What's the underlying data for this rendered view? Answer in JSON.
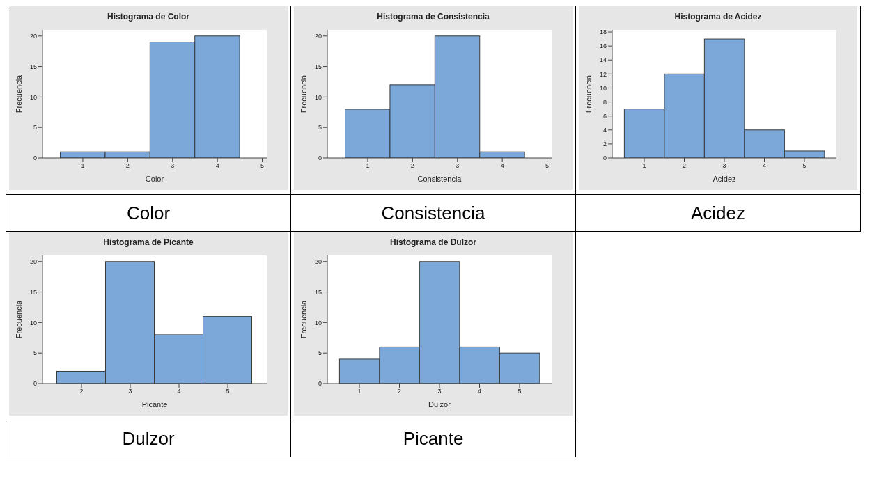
{
  "chart_data": [
    {
      "type": "histogram",
      "title": "Histograma de Color",
      "xlabel": "Color",
      "ylabel": "Frecuencia",
      "bins": [
        0.5,
        1.5,
        2.5,
        3.5,
        4.5
      ],
      "values": [
        1,
        1,
        19,
        20
      ],
      "color": "#7ba7d9",
      "xlim": [
        0.1,
        5.1
      ],
      "xticks": [
        1,
        2,
        3,
        4,
        5
      ],
      "ylim": [
        0,
        21
      ],
      "yticks": [
        0,
        5,
        10,
        15,
        20
      ],
      "annotations": [
        "Color"
      ]
    },
    {
      "type": "histogram",
      "title": "Histograma de Consistencia",
      "xlabel": "Consistencia",
      "ylabel": "Frecuencia",
      "bins": [
        0.5,
        1.5,
        2.5,
        3.5,
        4.5
      ],
      "values": [
        8,
        12,
        20,
        1
      ],
      "color": "#7ba7d9",
      "xlim": [
        0.1,
        5.1
      ],
      "xticks": [
        1,
        2,
        3,
        4,
        5
      ],
      "ylim": [
        0,
        21
      ],
      "yticks": [
        0,
        5,
        10,
        15,
        20
      ],
      "annotations": [
        "Consistencia"
      ]
    },
    {
      "type": "histogram",
      "title": "Histograma de Acidez",
      "xlabel": "Acidez",
      "ylabel": "Frecuencia",
      "bins": [
        0.5,
        1.5,
        2.5,
        3.5,
        4.5,
        5.5
      ],
      "values": [
        7,
        12,
        17,
        4,
        1
      ],
      "color": "#7ba7d9",
      "xlim": [
        0.2,
        5.8
      ],
      "xticks": [
        1,
        2,
        3,
        4,
        5
      ],
      "ylim": [
        0,
        18.3
      ],
      "yticks": [
        0,
        2,
        4,
        6,
        8,
        10,
        12,
        14,
        16,
        18
      ],
      "annotations": [
        "Acidez"
      ]
    },
    {
      "type": "histogram",
      "title": "Histograma de Picante",
      "xlabel": "Picante",
      "ylabel": "Frecuencia",
      "bins": [
        1.5,
        2.5,
        3.5,
        4.5,
        5.5
      ],
      "values": [
        2,
        20,
        8,
        11
      ],
      "color": "#7ba7d9",
      "xlim": [
        1.2,
        5.8
      ],
      "xticks": [
        2,
        3,
        4,
        5
      ],
      "ylim": [
        0,
        21
      ],
      "yticks": [
        0,
        5,
        10,
        15,
        20
      ],
      "annotations": [
        "Dulzor"
      ]
    },
    {
      "type": "histogram",
      "title": "Histograma de Dulzor",
      "xlabel": "Dulzor",
      "ylabel": "Frecuencia",
      "bins": [
        0.5,
        1.5,
        2.5,
        3.5,
        4.5,
        5.5
      ],
      "values": [
        4,
        6,
        20,
        6,
        5
      ],
      "color": "#7ba7d9",
      "xlim": [
        0.2,
        5.8
      ],
      "xticks": [
        1,
        2,
        3,
        4,
        5
      ],
      "ylim": [
        0,
        21
      ],
      "yticks": [
        0,
        5,
        10,
        15,
        20
      ],
      "annotations": [
        "Picante"
      ]
    }
  ]
}
